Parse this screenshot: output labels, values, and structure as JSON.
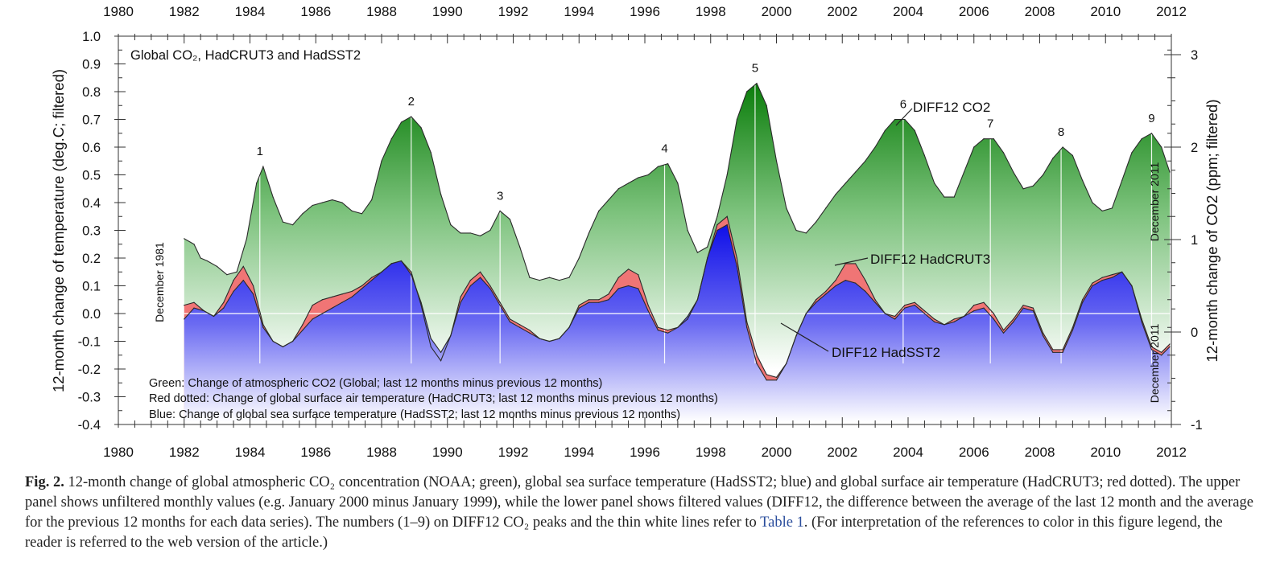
{
  "chart_data": {
    "type": "area",
    "panel_title": "Global CO₂, HadCRUT3 and HadSST2",
    "xlabel": "",
    "ylabel_left": "12-month change of temperature (deg.C; filtered)",
    "ylabel_right": "12-month change of CO2 (ppm; filtered)",
    "xlim": [
      1980,
      2012
    ],
    "ylim_left": [
      -0.4,
      1.0
    ],
    "ylim_right": [
      -1,
      3.2
    ],
    "x_ticks": [
      "1980",
      "1982",
      "1984",
      "1986",
      "1988",
      "1990",
      "1992",
      "1994",
      "1996",
      "1998",
      "2000",
      "2002",
      "2004",
      "2006",
      "2008",
      "2010",
      "2012"
    ],
    "y_ticks_left": [
      "1.0",
      "0.9",
      "0.8",
      "0.7",
      "0.6",
      "0.5",
      "0.4",
      "0.3",
      "0.2",
      "0.1",
      "0.0",
      "-0.1",
      "-0.2",
      "-0.3",
      "-0.4"
    ],
    "y_ticks_right": [
      "3",
      "2",
      "1",
      "0",
      "-1"
    ],
    "series": [
      {
        "name": "DIFF12 CO2",
        "color": "#1a8a1a",
        "x": [
          1982.0,
          1982.3,
          1982.5,
          1982.7,
          1983.0,
          1983.3,
          1983.6,
          1983.9,
          1984.2,
          1984.4,
          1984.7,
          1985.0,
          1985.3,
          1985.6,
          1985.9,
          1986.2,
          1986.5,
          1986.8,
          1987.1,
          1987.4,
          1987.7,
          1988.0,
          1988.3,
          1988.6,
          1988.9,
          1989.2,
          1989.5,
          1989.8,
          1990.1,
          1990.4,
          1990.7,
          1991.0,
          1991.3,
          1991.6,
          1991.9,
          1992.2,
          1992.5,
          1992.8,
          1993.1,
          1993.4,
          1993.7,
          1994.0,
          1994.3,
          1994.6,
          1994.9,
          1995.2,
          1995.5,
          1995.8,
          1996.1,
          1996.4,
          1996.7,
          1997.0,
          1997.3,
          1997.6,
          1997.9,
          1998.2,
          1998.5,
          1998.8,
          1999.1,
          1999.4,
          1999.7,
          2000.0,
          2000.3,
          2000.6,
          2000.9,
          2001.2,
          2001.5,
          2001.8,
          2002.1,
          2002.4,
          2002.7,
          2003.0,
          2003.3,
          2003.6,
          2003.9,
          2004.2,
          2004.5,
          2004.8,
          2005.1,
          2005.4,
          2005.7,
          2006.0,
          2006.3,
          2006.6,
          2006.9,
          2007.2,
          2007.5,
          2007.8,
          2008.1,
          2008.4,
          2008.7,
          2009.0,
          2009.3,
          2009.6,
          2009.9,
          2010.2,
          2010.5,
          2010.8,
          2011.1,
          2011.4,
          2011.7,
          2011.95
        ],
        "values": [
          0.27,
          0.25,
          0.2,
          0.19,
          0.17,
          0.14,
          0.15,
          0.27,
          0.47,
          0.53,
          0.42,
          0.33,
          0.32,
          0.36,
          0.39,
          0.4,
          0.41,
          0.4,
          0.37,
          0.36,
          0.41,
          0.55,
          0.63,
          0.69,
          0.71,
          0.67,
          0.58,
          0.43,
          0.32,
          0.29,
          0.29,
          0.28,
          0.3,
          0.37,
          0.34,
          0.24,
          0.13,
          0.12,
          0.13,
          0.12,
          0.13,
          0.2,
          0.29,
          0.37,
          0.41,
          0.45,
          0.47,
          0.49,
          0.5,
          0.53,
          0.54,
          0.47,
          0.3,
          0.22,
          0.24,
          0.35,
          0.5,
          0.7,
          0.8,
          0.83,
          0.75,
          0.55,
          0.38,
          0.3,
          0.29,
          0.33,
          0.38,
          0.43,
          0.47,
          0.51,
          0.55,
          0.6,
          0.66,
          0.7,
          0.7,
          0.66,
          0.57,
          0.47,
          0.42,
          0.42,
          0.51,
          0.6,
          0.63,
          0.63,
          0.58,
          0.51,
          0.45,
          0.46,
          0.5,
          0.56,
          0.6,
          0.57,
          0.48,
          0.4,
          0.37,
          0.38,
          0.48,
          0.58,
          0.63,
          0.65,
          0.6,
          0.51
        ]
      },
      {
        "name": "DIFF12 HadCRUT3",
        "color": "#f08080",
        "x": [
          1982.0,
          1982.3,
          1982.6,
          1982.9,
          1983.2,
          1983.5,
          1983.8,
          1984.1,
          1984.4,
          1984.7,
          1985.0,
          1985.3,
          1985.6,
          1985.9,
          1986.2,
          1986.5,
          1986.8,
          1987.1,
          1987.4,
          1987.7,
          1988.0,
          1988.3,
          1988.6,
          1988.9,
          1989.2,
          1989.5,
          1989.8,
          1990.1,
          1990.4,
          1990.7,
          1991.0,
          1991.3,
          1991.6,
          1991.9,
          1992.2,
          1992.5,
          1992.8,
          1993.1,
          1993.4,
          1993.7,
          1994.0,
          1994.3,
          1994.6,
          1994.9,
          1995.2,
          1995.5,
          1995.8,
          1996.1,
          1996.4,
          1996.7,
          1997.0,
          1997.3,
          1997.6,
          1997.9,
          1998.2,
          1998.5,
          1998.8,
          1999.1,
          1999.4,
          1999.7,
          2000.0,
          2000.3,
          2000.6,
          2000.9,
          2001.2,
          2001.5,
          2001.8,
          2002.1,
          2002.4,
          2002.7,
          2003.0,
          2003.3,
          2003.6,
          2003.9,
          2004.2,
          2004.5,
          2004.8,
          2005.1,
          2005.4,
          2005.7,
          2006.0,
          2006.3,
          2006.6,
          2006.9,
          2007.2,
          2007.5,
          2007.8,
          2008.1,
          2008.4,
          2008.7,
          2009.0,
          2009.3,
          2009.6,
          2009.9,
          2010.2,
          2010.5,
          2010.8,
          2011.1,
          2011.4,
          2011.7,
          2011.95
        ],
        "values": [
          0.03,
          0.04,
          0.01,
          -0.01,
          0.04,
          0.12,
          0.17,
          0.1,
          -0.04,
          -0.1,
          -0.12,
          -0.1,
          -0.04,
          0.03,
          0.05,
          0.06,
          0.07,
          0.08,
          0.1,
          0.13,
          0.15,
          0.18,
          0.19,
          0.15,
          0.03,
          -0.12,
          -0.17,
          -0.08,
          0.06,
          0.12,
          0.15,
          0.1,
          0.04,
          -0.02,
          -0.04,
          -0.06,
          -0.09,
          -0.1,
          -0.09,
          -0.05,
          0.03,
          0.05,
          0.05,
          0.07,
          0.13,
          0.16,
          0.14,
          0.03,
          -0.05,
          -0.06,
          -0.05,
          -0.02,
          0.05,
          0.2,
          0.32,
          0.35,
          0.2,
          -0.03,
          -0.15,
          -0.22,
          -0.23,
          -0.18,
          -0.08,
          0.0,
          0.05,
          0.08,
          0.12,
          0.18,
          0.18,
          0.12,
          0.05,
          0.0,
          -0.01,
          0.03,
          0.04,
          0.01,
          -0.02,
          -0.04,
          -0.02,
          -0.01,
          0.03,
          0.04,
          0.0,
          -0.06,
          -0.02,
          0.03,
          0.02,
          -0.07,
          -0.13,
          -0.13,
          -0.05,
          0.05,
          0.11,
          0.13,
          0.14,
          0.15,
          0.1,
          -0.02,
          -0.12,
          -0.14,
          -0.11
        ]
      },
      {
        "name": "DIFF12 HadSST2",
        "color": "#1a1aee",
        "x": [
          1982.0,
          1982.3,
          1982.6,
          1982.9,
          1983.2,
          1983.5,
          1983.8,
          1984.1,
          1984.4,
          1984.7,
          1985.0,
          1985.3,
          1985.6,
          1985.9,
          1986.2,
          1986.5,
          1986.8,
          1987.1,
          1987.4,
          1987.7,
          1988.0,
          1988.3,
          1988.6,
          1988.9,
          1989.2,
          1989.5,
          1989.8,
          1990.1,
          1990.4,
          1990.7,
          1991.0,
          1991.3,
          1991.6,
          1991.9,
          1992.2,
          1992.5,
          1992.8,
          1993.1,
          1993.4,
          1993.7,
          1994.0,
          1994.3,
          1994.6,
          1994.9,
          1995.2,
          1995.5,
          1995.8,
          1996.1,
          1996.4,
          1996.7,
          1997.0,
          1997.3,
          1997.6,
          1997.9,
          1998.2,
          1998.5,
          1998.8,
          1999.1,
          1999.4,
          1999.7,
          2000.0,
          2000.3,
          2000.6,
          2000.9,
          2001.2,
          2001.5,
          2001.8,
          2002.1,
          2002.4,
          2002.7,
          2003.0,
          2003.3,
          2003.6,
          2003.9,
          2004.2,
          2004.5,
          2004.8,
          2005.1,
          2005.4,
          2005.7,
          2006.0,
          2006.3,
          2006.6,
          2006.9,
          2007.2,
          2007.5,
          2007.8,
          2008.1,
          2008.4,
          2008.7,
          2009.0,
          2009.3,
          2009.6,
          2009.9,
          2010.2,
          2010.5,
          2010.8,
          2011.1,
          2011.4,
          2011.7,
          2011.95
        ],
        "values": [
          -0.02,
          0.02,
          0.01,
          -0.01,
          0.02,
          0.08,
          0.12,
          0.07,
          -0.05,
          -0.1,
          -0.12,
          -0.1,
          -0.06,
          -0.02,
          0.0,
          0.02,
          0.04,
          0.06,
          0.09,
          0.12,
          0.15,
          0.18,
          0.19,
          0.14,
          0.04,
          -0.09,
          -0.14,
          -0.08,
          0.04,
          0.1,
          0.13,
          0.09,
          0.03,
          -0.03,
          -0.05,
          -0.07,
          -0.09,
          -0.1,
          -0.09,
          -0.05,
          0.02,
          0.04,
          0.04,
          0.05,
          0.09,
          0.1,
          0.09,
          0.01,
          -0.06,
          -0.07,
          -0.05,
          -0.01,
          0.05,
          0.2,
          0.3,
          0.32,
          0.17,
          -0.05,
          -0.18,
          -0.24,
          -0.24,
          -0.18,
          -0.08,
          0.0,
          0.04,
          0.07,
          0.1,
          0.12,
          0.11,
          0.08,
          0.04,
          0.0,
          -0.02,
          0.02,
          0.03,
          0.0,
          -0.03,
          -0.04,
          -0.03,
          -0.01,
          0.01,
          0.02,
          -0.02,
          -0.07,
          -0.03,
          0.02,
          0.01,
          -0.08,
          -0.14,
          -0.14,
          -0.06,
          0.04,
          0.1,
          0.12,
          0.13,
          0.15,
          0.1,
          -0.03,
          -0.13,
          -0.15,
          -0.12
        ]
      }
    ],
    "peaks": [
      {
        "label": "1",
        "x": 1984.3,
        "y": 0.53
      },
      {
        "label": "2",
        "x": 1988.9,
        "y": 0.71
      },
      {
        "label": "3",
        "x": 1991.6,
        "y": 0.37
      },
      {
        "label": "4",
        "x": 1996.6,
        "y": 0.54
      },
      {
        "label": "5",
        "x": 1999.35,
        "y": 0.83
      },
      {
        "label": "6",
        "x": 2003.85,
        "y": 0.7
      },
      {
        "label": "7",
        "x": 2006.5,
        "y": 0.63
      },
      {
        "label": "8",
        "x": 2008.65,
        "y": 0.6
      },
      {
        "label": "9",
        "x": 2011.4,
        "y": 0.65
      }
    ],
    "annotations": {
      "co2_label": "DIFF12 CO2",
      "hadcrut_label": "DIFF12 HadCRUT3",
      "hadsst_label": "DIFF12 HadSST2",
      "dec1981": "December 1981",
      "dec2011_top": "December 2011",
      "dec2011_bottom": "December 2011",
      "legend_green": "Green: Change of atmospheric CO2 (Global; last 12 months minus previous 12 months)",
      "legend_red": "Red dotted: Change of global surface air temperature (HadCRUT3; last 12 months minus previous 12 months)",
      "legend_blue": "Blue: Change of global sea surface temperature (HadSST2; last 12 months minus previous 12 months)"
    },
    "grid": false
  },
  "caption": {
    "label": "Fig. 2.",
    "text_1": "12-month change of global atmospheric CO₂ concentration (NOAA; green), global sea surface temperature (HadSST2; blue) and global surface air temperature (HadCRUT3; red dotted). The upper panel shows unfiltered monthly values (e.g. January 2000 minus January 1999), while the lower panel shows filtered values (DIFF12, the difference between the average of the last 12  month and the average for the previous 12 months for each data series). The numbers (1–9) on DIFF12 CO₂ peaks and the thin white lines refer to",
    "link": "Table 1",
    "text_2": ". (For interpretation of the references to color in this figure legend, the reader is referred to the web version of the article.)"
  }
}
